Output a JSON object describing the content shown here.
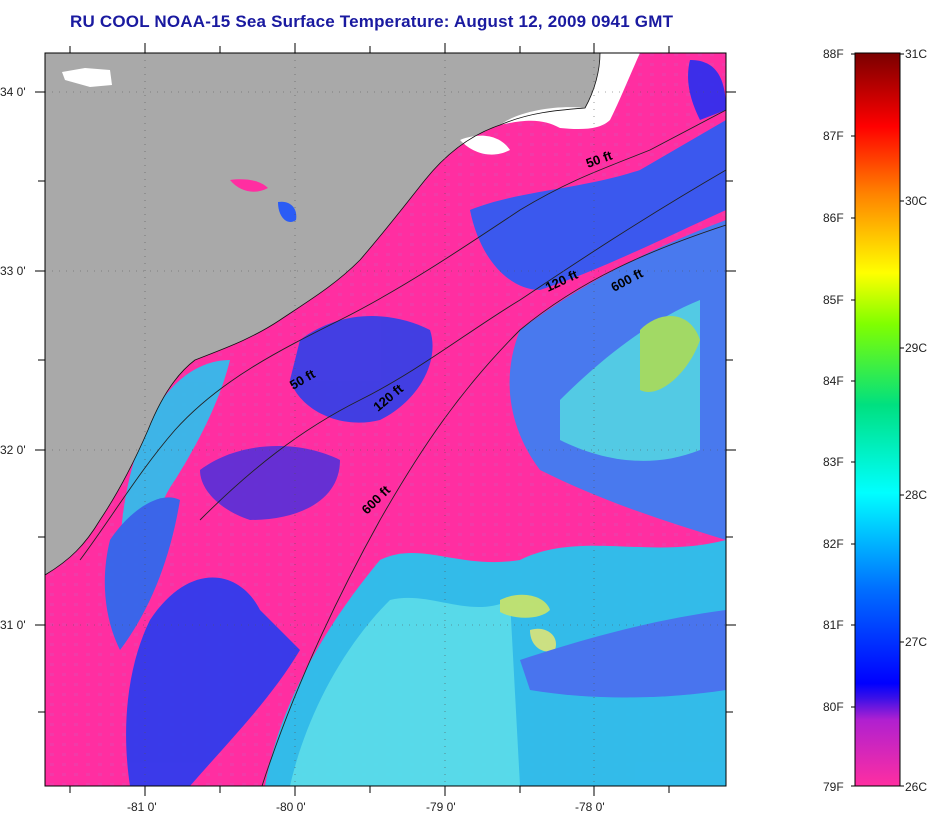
{
  "title": "RU COOL  NOAA-15  Sea Surface Temperature:  August 12, 2009 0941 GMT",
  "map": {
    "lat_labels": [
      "34 0'",
      "33 0'",
      "32 0'",
      "31 0'"
    ],
    "lon_labels": [
      "-81 0'",
      "-80 0'",
      "-79 0'",
      "-78 0'"
    ],
    "isobath_labels": [
      "50 ft",
      "120 ft",
      "600 ft",
      "50 ft",
      "120 ft",
      "600 ft"
    ],
    "colors": {
      "land": "#a9a9a9",
      "cloud": "#ff2ea1",
      "nodata": "#ffffff"
    }
  },
  "colorbar": {
    "fahrenheit_labels": [
      "88F",
      "87F",
      "86F",
      "85F",
      "84F",
      "83F",
      "82F",
      "81F",
      "80F",
      "79F"
    ],
    "celsius_labels": [
      "31C",
      "30C",
      "29C",
      "28C",
      "27C",
      "26C"
    ]
  }
}
